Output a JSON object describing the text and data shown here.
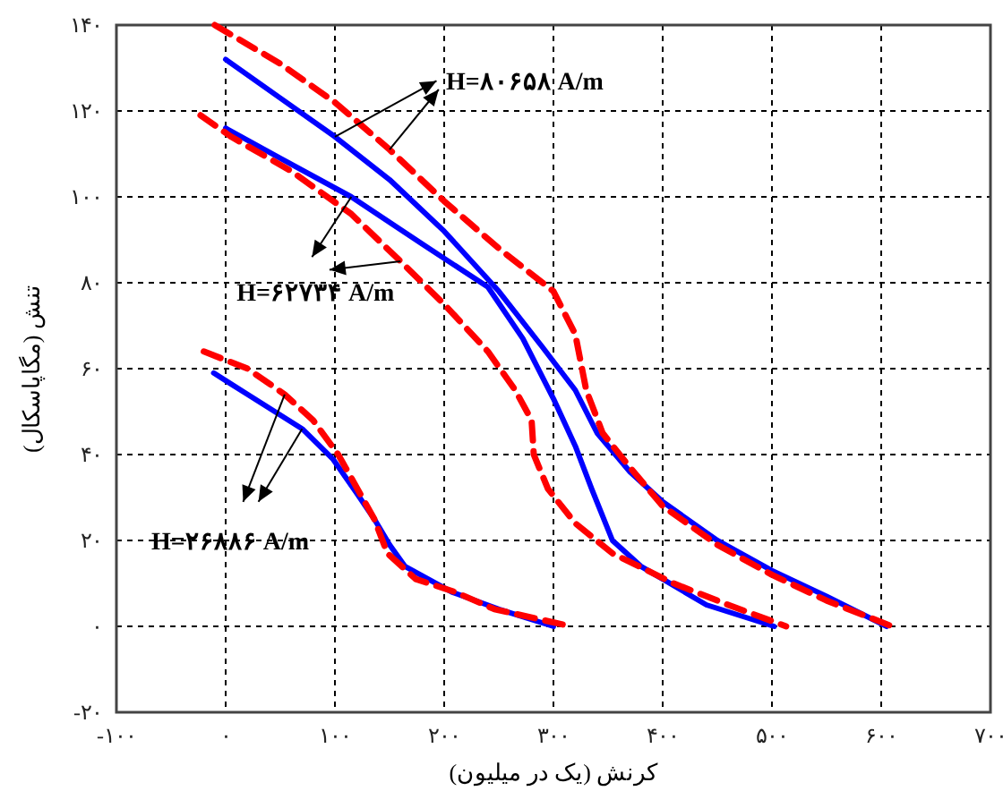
{
  "chart_data": {
    "type": "line",
    "xlabel": "کرنش (یک در میلیون)",
    "ylabel": "تنش (مگاپاسکال)",
    "annotations": [
      {
        "text": "H=۸۰۶۵۸ A/m",
        "x": 100,
        "y": 114
      },
      {
        "text": "H=۶۲۷۳۴ A/m",
        "x": 115,
        "y": 100
      },
      {
        "text": "H=۲۶۸۸۶ A/m",
        "x": 54,
        "y": 54
      }
    ],
    "xlim": [
      -100,
      700
    ],
    "ylim": [
      -20,
      140
    ],
    "xticks": [
      {
        "value": -100,
        "label": "-۱۰۰"
      },
      {
        "value": 0,
        "label": "۰"
      },
      {
        "value": 100,
        "label": "۱۰۰"
      },
      {
        "value": 200,
        "label": "۲۰۰"
      },
      {
        "value": 300,
        "label": "۳۰۰"
      },
      {
        "value": 400,
        "label": "۴۰۰"
      },
      {
        "value": 500,
        "label": "۵۰۰"
      },
      {
        "value": 600,
        "label": "۶۰۰"
      },
      {
        "value": 700,
        "label": "۷۰۰"
      }
    ],
    "yticks": [
      {
        "value": -20,
        "label": "-۲۰"
      },
      {
        "value": 0,
        "label": "۰"
      },
      {
        "value": 20,
        "label": "۲۰"
      },
      {
        "value": 40,
        "label": "۴۰"
      },
      {
        "value": 60,
        "label": "۶۰"
      },
      {
        "value": 80,
        "label": "۸۰"
      },
      {
        "value": 100,
        "label": "۱۰۰"
      },
      {
        "value": 120,
        "label": "۱۲۰"
      },
      {
        "value": 140,
        "label": "۱۴۰"
      }
    ],
    "grid": true,
    "series": [
      {
        "color": "#0000ff",
        "line_style": "solid",
        "x": [
          0,
          50,
          100,
          150,
          200,
          250,
          290,
          320,
          340,
          370,
          400,
          450,
          500,
          550,
          605
        ],
        "values": [
          132,
          123,
          114,
          104,
          92,
          78,
          65,
          55,
          45,
          36,
          29,
          20,
          13,
          7,
          0
        ]
      },
      {
        "color": "#ff0000",
        "line_style": "dashed",
        "x": [
          -10,
          50,
          100,
          150,
          200,
          250,
          300,
          320,
          330,
          345,
          370,
          400,
          450,
          500,
          550,
          610
        ],
        "values": [
          140,
          131,
          122,
          111,
          99,
          88,
          78,
          68,
          55,
          45,
          37,
          28,
          19,
          12,
          6,
          0
        ]
      },
      {
        "color": "#0000ff",
        "line_style": "solid",
        "x": [
          0,
          50,
          115,
          180,
          240,
          272,
          300,
          320,
          335,
          354,
          380,
          400,
          440,
          502
        ],
        "values": [
          116,
          109,
          100,
          89,
          79,
          67,
          53,
          42,
          32,
          20,
          14,
          11,
          5,
          0
        ]
      },
      {
        "color": "#ff0000",
        "line_style": "dashed",
        "x": [
          -23,
          5,
          60,
          115,
          160,
          200,
          240,
          265,
          280,
          282,
          295,
          320,
          354,
          410,
          460,
          513
        ],
        "values": [
          119,
          114,
          106,
          96,
          85,
          75,
          64,
          55,
          48,
          40,
          32,
          24,
          17,
          10,
          5,
          0
        ]
      },
      {
        "color": "#0000ff",
        "line_style": "solid",
        "x": [
          -11,
          20,
          70,
          98,
          120,
          136,
          150,
          164,
          207,
          250,
          300
        ],
        "values": [
          59,
          54,
          46,
          39,
          31,
          25,
          19,
          14,
          8,
          4,
          0
        ]
      },
      {
        "color": "#ff0000",
        "line_style": "dashed",
        "x": [
          -20,
          20,
          54,
          80,
          103,
          125,
          136,
          148,
          174,
          210,
          246,
          316
        ],
        "values": [
          64,
          60,
          54,
          48,
          40,
          30,
          25,
          17,
          11,
          8,
          4,
          0
        ]
      }
    ]
  }
}
